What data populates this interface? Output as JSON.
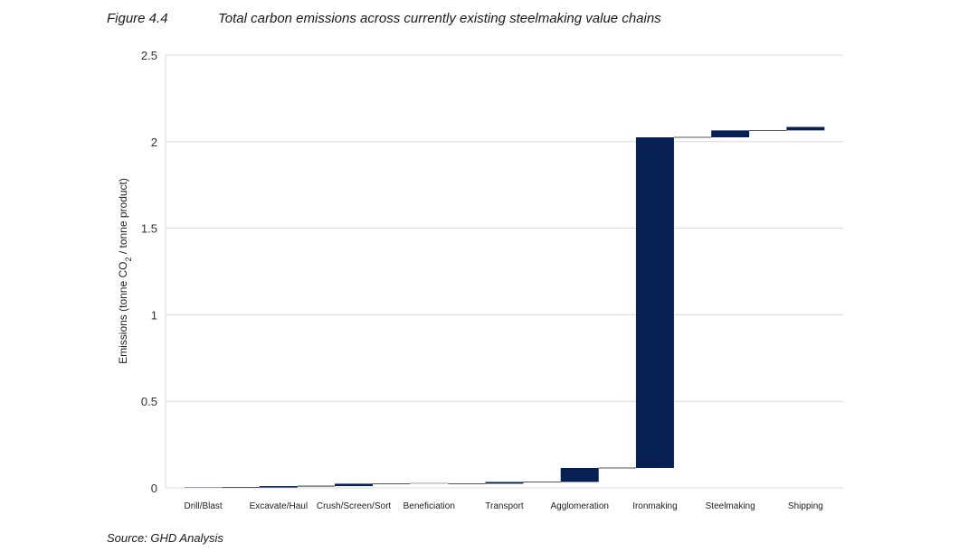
{
  "figure": {
    "label": "Figure 4.4",
    "title": "Total carbon emissions across currently existing steelmaking value chains",
    "source": "Source: GHD Analysis"
  },
  "chart_data": {
    "type": "bar",
    "subtype": "waterfall",
    "title": "Total carbon emissions across currently existing steelmaking value chains",
    "ylabel": "Emissions (tonne CO2 / tonne product)",
    "ylabel_parts": {
      "before": "Emissions (tonne CO",
      "sub": "2",
      "after": " / tonne product)"
    },
    "xlabel": "",
    "ylim": [
      0,
      2.5
    ],
    "yticks": [
      0,
      0.5,
      1,
      1.5,
      2,
      2.5
    ],
    "ytick_labels": [
      "0",
      "0.5",
      "1",
      "1.5",
      "2",
      "2.5"
    ],
    "grid": true,
    "categories": [
      "Drill/Blast",
      "Excavate/Haul",
      "Crush/Screen/Sort",
      "Beneficiation",
      "Transport",
      "Agglomeration",
      "Ironmaking",
      "Steelmaking",
      "Shipping"
    ],
    "bar_base": [
      0,
      0.002,
      0.01,
      0.024,
      0.024,
      0.034,
      0.115,
      2.025,
      2.065
    ],
    "values": [
      0.002,
      0.008,
      0.014,
      0.0,
      0.01,
      0.081,
      1.91,
      0.04,
      0.02
    ],
    "cumulative": [
      0.002,
      0.01,
      0.024,
      0.024,
      0.034,
      0.115,
      2.025,
      2.065,
      2.085
    ],
    "bar_color": "#062054",
    "grid_color": "#d9d9d9"
  }
}
